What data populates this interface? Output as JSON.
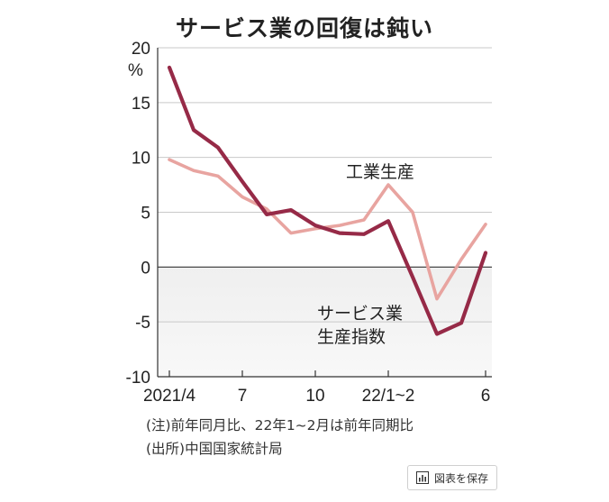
{
  "chart_data": {
    "type": "line",
    "title": "サービス業の回復は鈍い",
    "y_unit": "%",
    "ylim": [
      -10,
      20
    ],
    "y_ticks": [
      "20",
      "15",
      "10",
      "5",
      "0",
      "-5",
      "-10"
    ],
    "x_tick_labels": [
      {
        "label": "2021/4",
        "index": 0
      },
      {
        "label": "7",
        "index": 3
      },
      {
        "label": "10",
        "index": 6
      },
      {
        "label": "22/1~2",
        "index": 9
      },
      {
        "label": "6",
        "index": 13
      }
    ],
    "categories": [
      "2021/4",
      "2021/5",
      "2021/6",
      "2021/7",
      "2021/8",
      "2021/9",
      "2021/10",
      "2021/11",
      "2021/12",
      "22/1~2",
      "2022/3",
      "2022/4",
      "2022/5",
      "2022/6"
    ],
    "negative_region_shaded": true,
    "grid": "horizontal",
    "series": [
      {
        "name": "工業生産",
        "color": "#e8a4a0",
        "values": [
          9.8,
          8.8,
          8.3,
          6.4,
          5.3,
          3.1,
          3.5,
          3.8,
          4.3,
          7.5,
          5.0,
          -2.9,
          0.7,
          3.9
        ]
      },
      {
        "name": "サービス業生産指数",
        "label_lines": [
          "サービス業",
          "生産指数"
        ],
        "color": "#962a47",
        "values": [
          18.2,
          12.5,
          10.9,
          7.8,
          4.8,
          5.2,
          3.8,
          3.1,
          3.0,
          4.2,
          -0.9,
          -6.1,
          -5.1,
          1.3
        ]
      }
    ]
  },
  "notes": {
    "note_1": "(注)前年同月比、22年1~2月は前年同期比",
    "note_2": "(出所)中国国家統計局"
  },
  "save_button": {
    "label": "図表を保存",
    "icon": "bar-chart-icon"
  }
}
